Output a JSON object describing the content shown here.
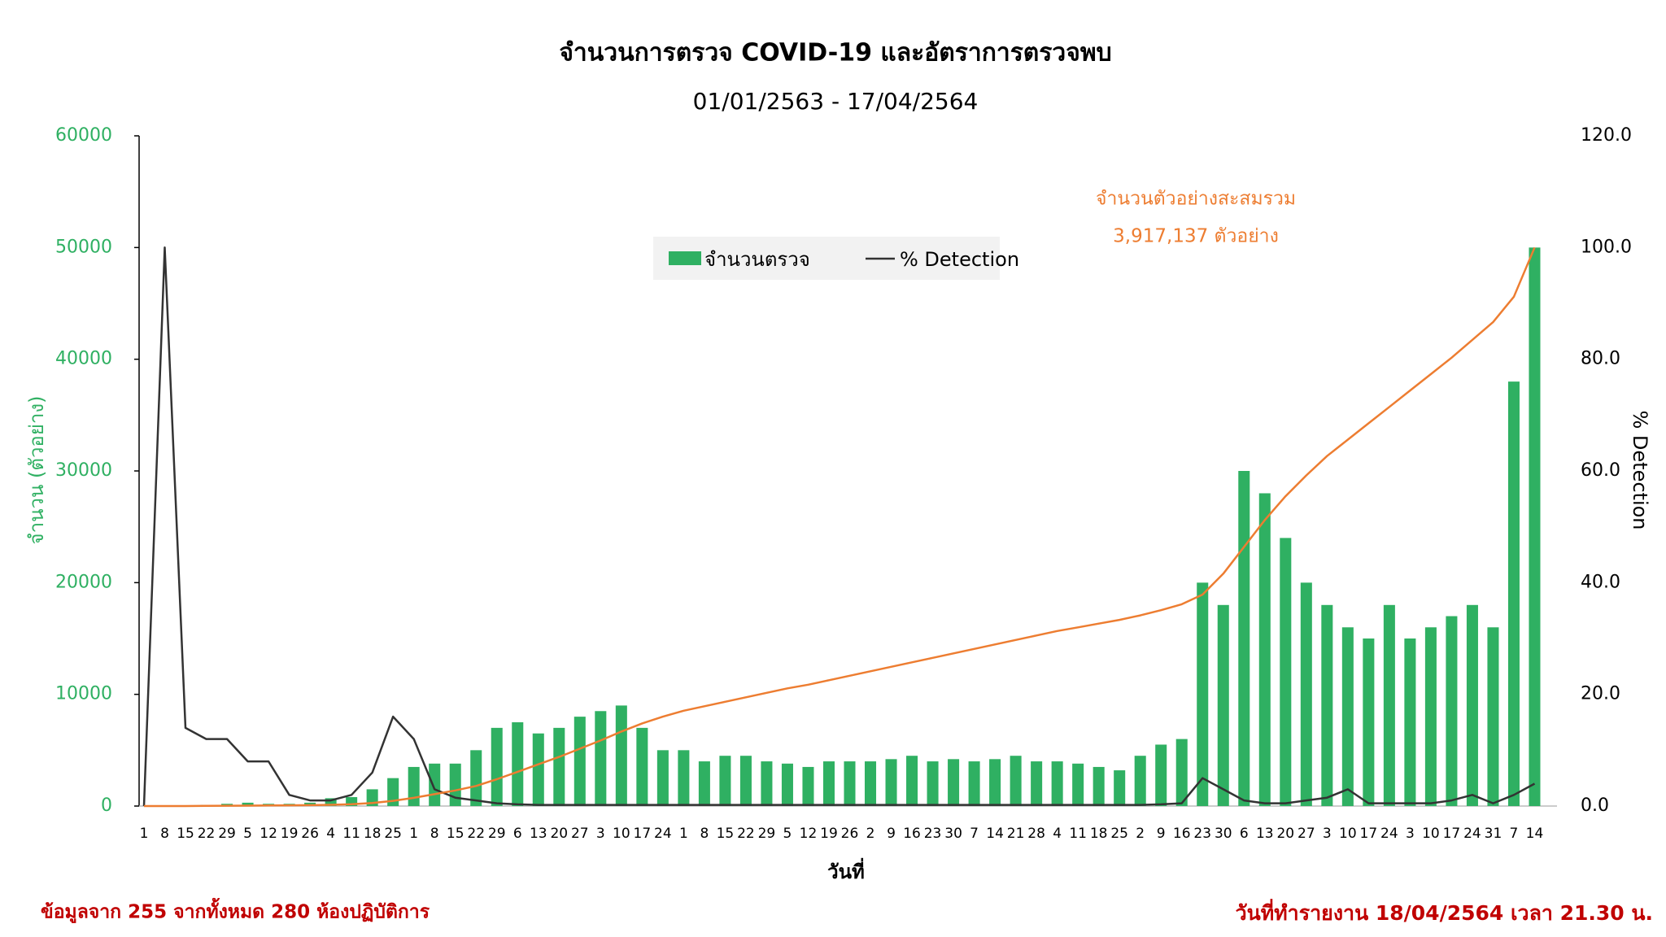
{
  "chart_data": {
    "type": "bar",
    "title": "จำนวนการตรวจ COVID-19 และอัตราการตรวจพบ",
    "subtitle": "01/01/2563 - 17/04/2564",
    "x_label": "วันที่",
    "y_label": "จำนวน (ตัวอย่าง)",
    "y2_label": "% Detection",
    "categories": [
      1,
      8,
      15,
      22,
      29,
      5,
      12,
      19,
      26,
      4,
      11,
      18,
      25,
      1,
      8,
      15,
      22,
      29,
      6,
      13,
      20,
      27,
      3,
      10,
      17,
      24,
      1,
      8,
      15,
      22,
      29,
      5,
      12,
      19,
      26,
      2,
      9,
      16,
      23,
      30,
      7,
      14,
      21,
      28,
      4,
      11,
      18,
      25,
      2,
      9,
      16,
      23,
      30,
      6,
      13,
      20,
      27,
      3,
      10,
      17,
      24,
      3,
      10,
      17,
      24,
      31,
      7,
      14
    ],
    "series": [
      {
        "name": "จำนวนตรวจ",
        "type": "bar",
        "color": "#2fb062",
        "values": [
          0,
          0,
          50,
          100,
          200,
          300,
          200,
          200,
          300,
          700,
          800,
          1500,
          2500,
          3500,
          3800,
          3800,
          5000,
          7000,
          7500,
          6500,
          7000,
          8000,
          8500,
          9000,
          7000,
          5000,
          5000,
          4000,
          4500,
          4500,
          4000,
          3800,
          3500,
          4000,
          4000,
          4000,
          4200,
          4500,
          4000,
          4200,
          4000,
          4200,
          4500,
          4000,
          4000,
          3800,
          3500,
          3200,
          4500,
          5500,
          6000,
          20000,
          18000,
          30000,
          28000,
          24000,
          20000,
          18000,
          16000,
          15000,
          18000,
          15000,
          16000,
          17000,
          18000,
          16000,
          38000,
          50000
        ]
      },
      {
        "name": "% Detection",
        "type": "line",
        "axis": "y2",
        "color": "#333333",
        "values": [
          0,
          100,
          14,
          12,
          12,
          8,
          8,
          2,
          1,
          1,
          2,
          6,
          16,
          12,
          3,
          1.5,
          1,
          0.5,
          0.3,
          0.2,
          0.2,
          0.2,
          0.2,
          0.2,
          0.2,
          0.2,
          0.2,
          0.2,
          0.2,
          0.2,
          0.2,
          0.2,
          0.2,
          0.2,
          0.2,
          0.2,
          0.2,
          0.2,
          0.2,
          0.2,
          0.2,
          0.2,
          0.2,
          0.2,
          0.2,
          0.2,
          0.2,
          0.2,
          0.2,
          0.3,
          0.5,
          5,
          3,
          1,
          0.5,
          0.5,
          1,
          1.5,
          3,
          0.5,
          0.5,
          0.5,
          0.5,
          1,
          2,
          0.5,
          2,
          4
        ]
      },
      {
        "type": "line",
        "axis": "y3",
        "color": "#ed7d31",
        "values": [
          0,
          0,
          0,
          1000,
          2000,
          3000,
          4000,
          5000,
          6000,
          8000,
          12000,
          20000,
          35000,
          55000,
          80000,
          105000,
          135000,
          180000,
          230000,
          280000,
          330000,
          385000,
          440000,
          500000,
          555000,
          600000,
          640000,
          670000,
          700000,
          730000,
          760000,
          790000,
          815000,
          845000,
          875000,
          905000,
          935000,
          965000,
          995000,
          1025000,
          1055000,
          1085000,
          1115000,
          1145000,
          1175000,
          1200000,
          1225000,
          1250000,
          1280000,
          1315000,
          1355000,
          1420000,
          1560000,
          1740000,
          1920000,
          2080000,
          2220000,
          2350000,
          2460000,
          2570000,
          2680000,
          2790000,
          2900000,
          3010000,
          3130000,
          3250000,
          3420000,
          3750000
        ]
      }
    ],
    "ylim": [
      0,
      60000
    ],
    "yticks": [
      0,
      10000,
      20000,
      30000,
      40000,
      50000,
      60000
    ],
    "y2lim": [
      0,
      120
    ],
    "y2ticks": [
      {
        "value": 0,
        "label": "0.0"
      },
      {
        "value": 20,
        "label": "20.0"
      },
      {
        "value": 40,
        "label": "40.0"
      },
      {
        "value": 60,
        "label": "60.0"
      },
      {
        "value": 80,
        "label": "80.0"
      },
      {
        "value": 100,
        "label": "100.0"
      },
      {
        "value": 120,
        "label": "120.0"
      }
    ],
    "y3lim": [
      0,
      4500000
    ],
    "annotation": [
      "จำนวนตัวอย่างสะสมรวม",
      "3,917,137 ตัวอย่าง"
    ],
    "source_note": "ข้อมูลจาก 255 จากทั้งหมด 280 ห้องปฏิบัติการ",
    "report_note": "วันที่ทำรายงาน 18/04/2564 เวลา 21.30 น.",
    "legend": "top"
  }
}
